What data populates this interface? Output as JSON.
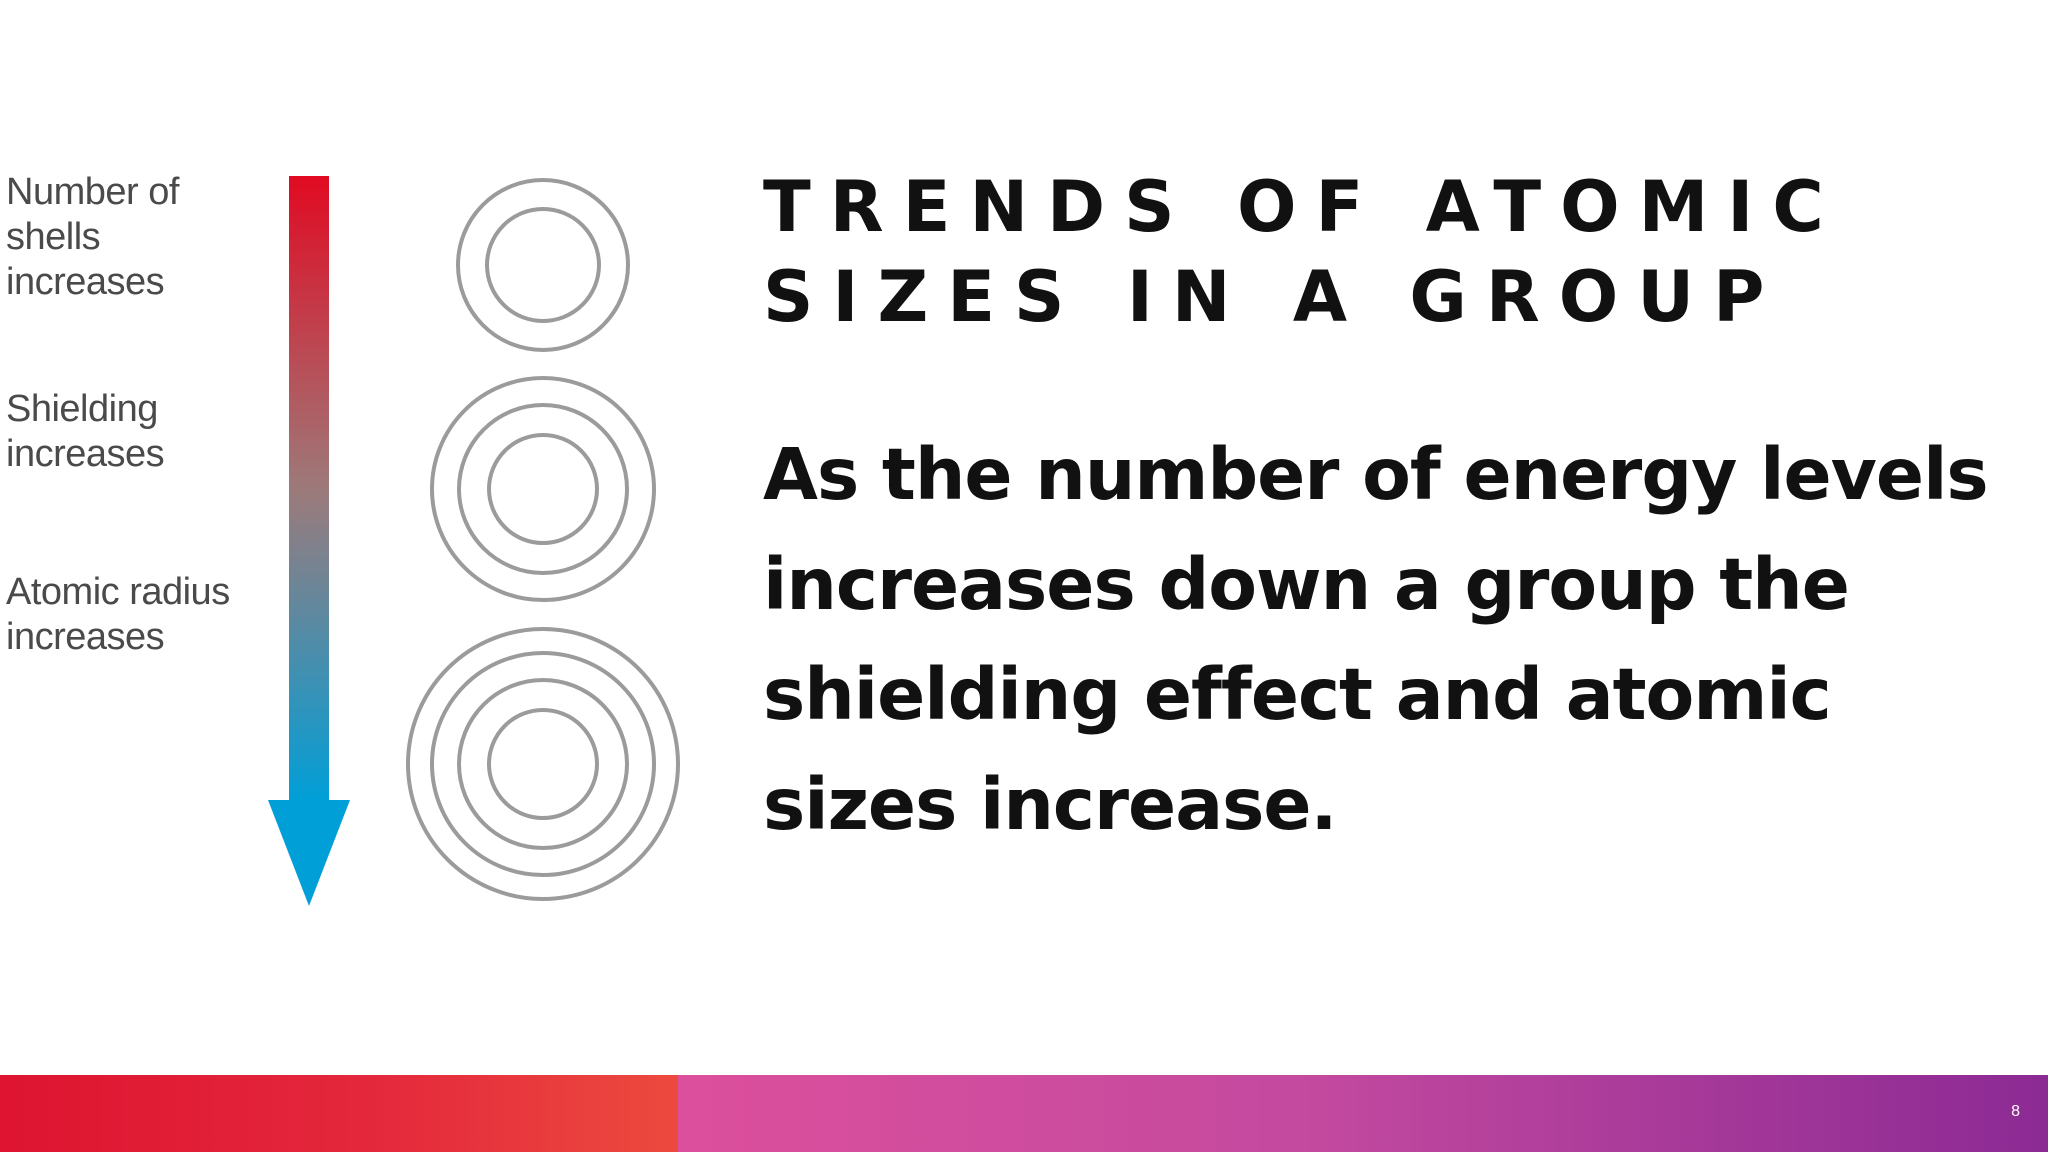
{
  "diagram": {
    "labels": {
      "shells": "Number of\nshells\nincreases",
      "shielding": "Shielding\nincreases",
      "radius": "Atomic radius\nincreases"
    },
    "arrow": {
      "top_color": "#e10a22",
      "bottom_color": "#009fd8"
    },
    "atoms": [
      {
        "shells": 2
      },
      {
        "shells": 3
      },
      {
        "shells": 4
      }
    ],
    "ring_color": "#9b9b9b"
  },
  "title": {
    "line1": "TRENDS OF ATOMIC",
    "line2": "SIZES IN A GROUP"
  },
  "body": {
    "lines": [
      "As the number of energy levels",
      "increases down a group the",
      "shielding effect and atomic",
      "sizes increase."
    ]
  },
  "footer": {
    "slide_number": "8",
    "left_color": "#e4283c",
    "right_color": "#c44a9f"
  }
}
